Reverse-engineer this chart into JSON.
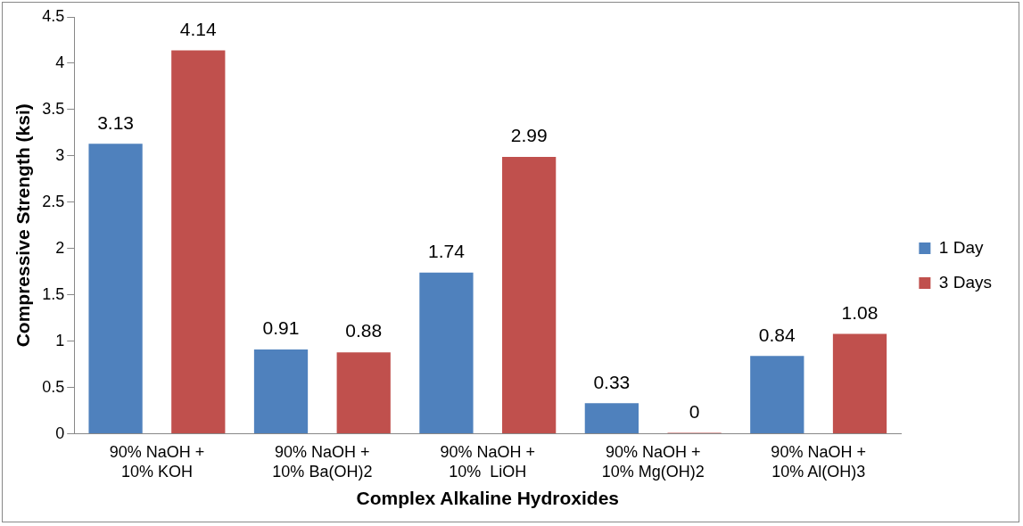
{
  "chart_data": {
    "type": "bar",
    "xlabel": "Complex Alkaline Hydroxides",
    "ylabel": "Compressive Strength (ksi)",
    "categories": [
      "90% NaOH +\n10% KOH",
      "90% NaOH +\n10% Ba(OH)2",
      "90% NaOH +\n10%  LiOH",
      "90% NaOH +\n10% Mg(OH)2",
      "90% NaOH +\n10% Al(OH)3"
    ],
    "series": [
      {
        "name": "1 Day",
        "color": "#4f81bd",
        "values": [
          3.13,
          0.91,
          1.74,
          0.33,
          0.84
        ]
      },
      {
        "name": "3 Days",
        "color": "#c0504d",
        "values": [
          4.14,
          0.88,
          2.99,
          0,
          1.08
        ]
      }
    ],
    "ylim": [
      0,
      4.5
    ],
    "yticks": [
      0,
      0.5,
      1,
      1.5,
      2,
      2.5,
      3,
      3.5,
      4,
      4.5
    ],
    "grid": false,
    "legend": "right",
    "data_labels": true
  }
}
